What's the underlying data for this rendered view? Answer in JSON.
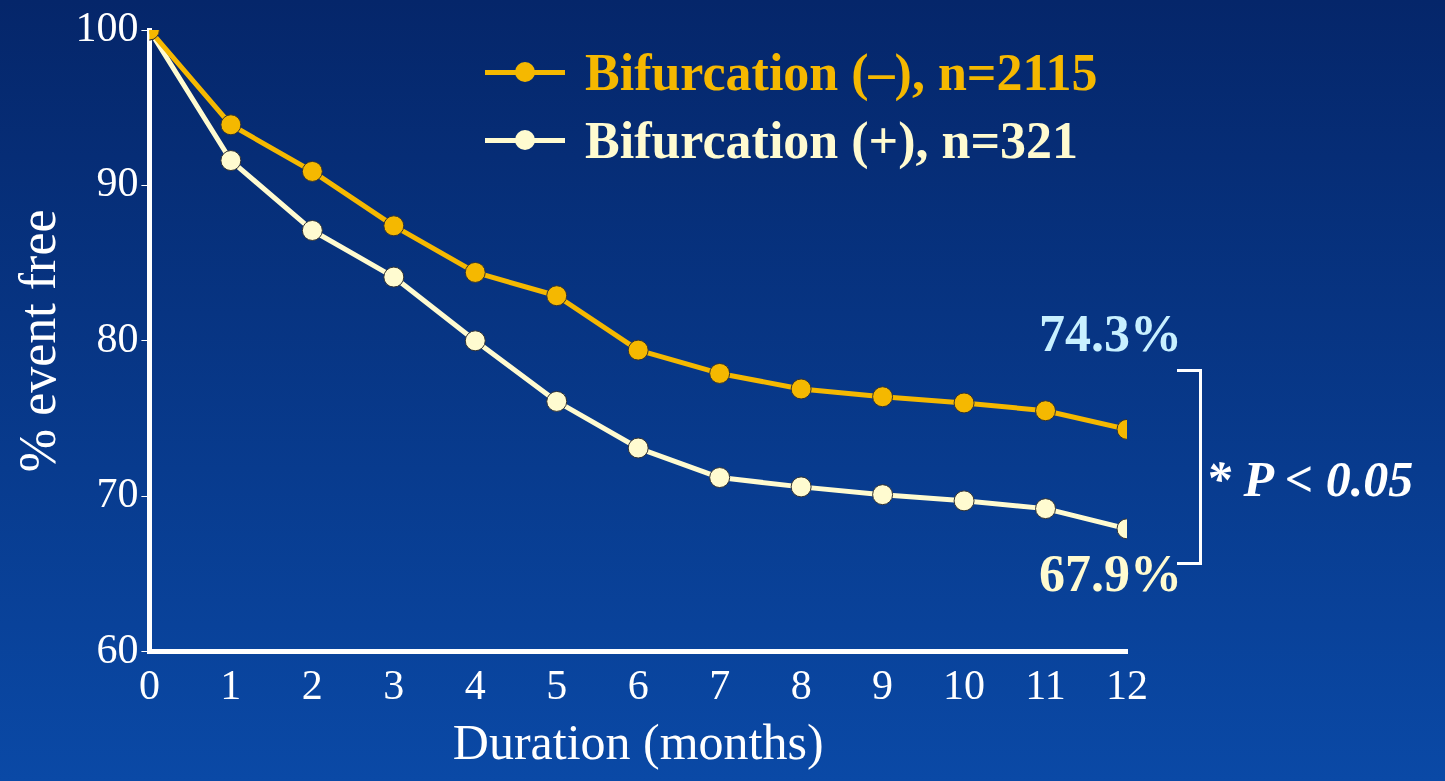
{
  "chart_data": {
    "type": "line",
    "xlabel": "Duration (months)",
    "ylabel": "% event free",
    "x": [
      0,
      1,
      2,
      3,
      4,
      5,
      6,
      7,
      8,
      9,
      10,
      11,
      12
    ],
    "series": [
      {
        "name": "Bifurcation (–), n=2115",
        "color": "#f5b800",
        "values": [
          100,
          93.9,
          90.9,
          87.4,
          84.4,
          82.9,
          79.4,
          77.9,
          76.9,
          76.4,
          76.0,
          75.5,
          74.3
        ]
      },
      {
        "name": "Bifurcation (+), n=321",
        "color": "#fffbd0",
        "values": [
          100,
          91.6,
          87.1,
          84.1,
          80.0,
          76.1,
          73.1,
          71.2,
          70.6,
          70.1,
          69.7,
          69.2,
          67.9
        ]
      }
    ],
    "xlim": [
      0,
      12
    ],
    "xticks": [
      0,
      1,
      2,
      3,
      4,
      5,
      6,
      7,
      8,
      9,
      10,
      11,
      12
    ],
    "ylim": [
      60,
      100
    ],
    "yticks": [
      60,
      70,
      80,
      90,
      100
    ],
    "annotations": [
      {
        "text": "74.3%",
        "x": 12,
        "y": 74.3
      },
      {
        "text": "67.9%",
        "x": 12,
        "y": 67.9
      },
      "* P < 0.05"
    ],
    "grid": false,
    "legend": "top right",
    "marker": "circle",
    "line_style": "solid"
  }
}
